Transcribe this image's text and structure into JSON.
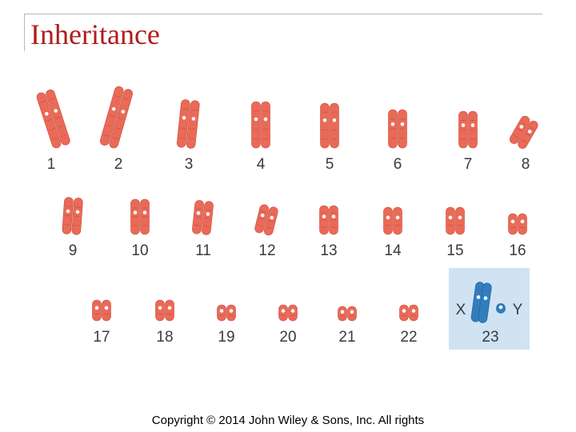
{
  "slide": {
    "title": "Inheritance",
    "copyright": "Copyright © 2014 John Wiley & Sons, Inc. All rights"
  },
  "colors": {
    "title": "#b01c1c",
    "autosome": "#ea6a58",
    "y_chromosome": "#2e7fc1",
    "sex_panel": "#cfe3f3",
    "frame": "#b8b8b8"
  },
  "karyotype": {
    "autosome_labels": [
      "1",
      "2",
      "3",
      "4",
      "5",
      "6",
      "7",
      "8",
      "9",
      "10",
      "11",
      "12",
      "13",
      "14",
      "15",
      "16",
      "17",
      "18",
      "19",
      "20",
      "21",
      "22"
    ],
    "sex_pair": {
      "label": "23",
      "x_label": "X",
      "y_label": "Y"
    }
  }
}
